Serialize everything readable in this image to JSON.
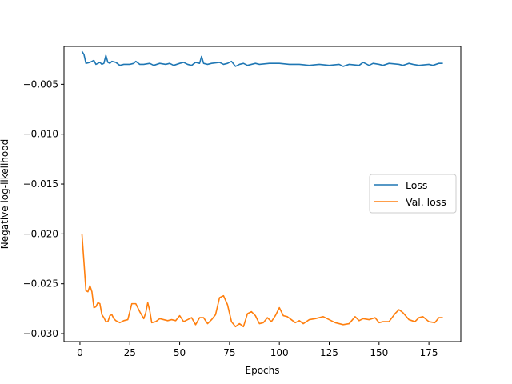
{
  "chart_data": {
    "type": "line",
    "title": "",
    "xlabel": "Epochs",
    "ylabel": "Negative log-likelihood",
    "xlim": [
      -8,
      191
    ],
    "ylim": [
      -0.0308,
      -0.0012
    ],
    "xticks": [
      0,
      25,
      50,
      75,
      100,
      125,
      150,
      175
    ],
    "xtick_labels": [
      "0",
      "25",
      "50",
      "75",
      "100",
      "125",
      "150",
      "175"
    ],
    "yticks": [
      -0.005,
      -0.01,
      -0.015,
      -0.02,
      -0.025,
      -0.03
    ],
    "ytick_labels": [
      "−0.005",
      "−0.010",
      "−0.015",
      "−0.020",
      "−0.025",
      "−0.030"
    ],
    "grid": false,
    "legend_position": "center-right",
    "series": [
      {
        "name": "Loss",
        "color": "#1f77b4",
        "x": [
          1,
          2,
          3,
          5,
          7,
          8,
          9,
          10,
          11,
          12,
          13,
          14,
          15,
          16,
          18,
          20,
          22,
          25,
          27,
          28,
          30,
          32,
          35,
          37,
          40,
          43,
          45,
          47,
          50,
          52,
          54,
          56,
          58,
          60,
          61,
          62,
          64,
          66,
          70,
          72,
          74,
          76,
          78,
          80,
          82,
          84,
          86,
          88,
          90,
          95,
          100,
          105,
          110,
          115,
          120,
          125,
          130,
          132,
          135,
          140,
          142,
          145,
          147,
          150,
          152,
          155,
          160,
          162,
          165,
          167,
          170,
          175,
          177,
          180,
          182
        ],
        "values": [
          -0.0017,
          -0.002,
          -0.0029,
          -0.0028,
          -0.0026,
          -0.003,
          -0.0029,
          -0.0028,
          -0.003,
          -0.0029,
          -0.0021,
          -0.0028,
          -0.0029,
          -0.0027,
          -0.0028,
          -0.0031,
          -0.003,
          -0.003,
          -0.0029,
          -0.0027,
          -0.003,
          -0.003,
          -0.0029,
          -0.0031,
          -0.0029,
          -0.003,
          -0.0029,
          -0.0031,
          -0.0029,
          -0.0028,
          -0.003,
          -0.0031,
          -0.0028,
          -0.0029,
          -0.0022,
          -0.0029,
          -0.003,
          -0.0029,
          -0.0028,
          -0.003,
          -0.0029,
          -0.0027,
          -0.0032,
          -0.003,
          -0.0029,
          -0.0031,
          -0.003,
          -0.0029,
          -0.003,
          -0.0029,
          -0.0029,
          -0.003,
          -0.003,
          -0.0031,
          -0.003,
          -0.0031,
          -0.003,
          -0.0032,
          -0.003,
          -0.0031,
          -0.0028,
          -0.0031,
          -0.0029,
          -0.003,
          -0.0031,
          -0.0029,
          -0.003,
          -0.0031,
          -0.0029,
          -0.003,
          -0.0031,
          -0.003,
          -0.0031,
          -0.0029,
          -0.0029
        ]
      },
      {
        "name": "Val. loss",
        "color": "#ff7f0e",
        "x": [
          1,
          2,
          3,
          4,
          5,
          6,
          7,
          8,
          9,
          10,
          11,
          12,
          13,
          14,
          15,
          16,
          17,
          18,
          20,
          22,
          24,
          26,
          28,
          30,
          32,
          33,
          34,
          35,
          36,
          38,
          40,
          42,
          44,
          46,
          48,
          50,
          52,
          54,
          56,
          58,
          60,
          62,
          64,
          66,
          68,
          70,
          72,
          74,
          76,
          78,
          80,
          82,
          84,
          86,
          88,
          90,
          92,
          94,
          96,
          98,
          100,
          102,
          104,
          106,
          108,
          110,
          112,
          115,
          118,
          120,
          122,
          125,
          128,
          130,
          132,
          135,
          138,
          140,
          142,
          145,
          148,
          150,
          152,
          155,
          158,
          160,
          162,
          165,
          168,
          170,
          172,
          175,
          178,
          180,
          182
        ],
        "values": [
          -0.02,
          -0.0228,
          -0.0257,
          -0.0258,
          -0.0252,
          -0.0258,
          -0.0274,
          -0.0273,
          -0.0269,
          -0.027,
          -0.0281,
          -0.0284,
          -0.0288,
          -0.0288,
          -0.0282,
          -0.0281,
          -0.0285,
          -0.0287,
          -0.0289,
          -0.0287,
          -0.0286,
          -0.027,
          -0.027,
          -0.0278,
          -0.0285,
          -0.0279,
          -0.0269,
          -0.0277,
          -0.0289,
          -0.0288,
          -0.0285,
          -0.0286,
          -0.0287,
          -0.0286,
          -0.0287,
          -0.0282,
          -0.0288,
          -0.0286,
          -0.0284,
          -0.0291,
          -0.0284,
          -0.0284,
          -0.029,
          -0.0286,
          -0.0281,
          -0.0264,
          -0.0262,
          -0.0271,
          -0.0288,
          -0.0293,
          -0.029,
          -0.0293,
          -0.028,
          -0.0278,
          -0.0282,
          -0.029,
          -0.0289,
          -0.0284,
          -0.0288,
          -0.0282,
          -0.0274,
          -0.0282,
          -0.0283,
          -0.0286,
          -0.0289,
          -0.0287,
          -0.029,
          -0.0286,
          -0.0285,
          -0.0284,
          -0.0283,
          -0.0286,
          -0.0289,
          -0.029,
          -0.0291,
          -0.029,
          -0.0283,
          -0.0287,
          -0.0285,
          -0.0286,
          -0.0284,
          -0.0289,
          -0.0288,
          -0.0288,
          -0.028,
          -0.0276,
          -0.0279,
          -0.0286,
          -0.0288,
          -0.0284,
          -0.0283,
          -0.0288,
          -0.0289,
          -0.0284,
          -0.0284
        ]
      }
    ]
  }
}
